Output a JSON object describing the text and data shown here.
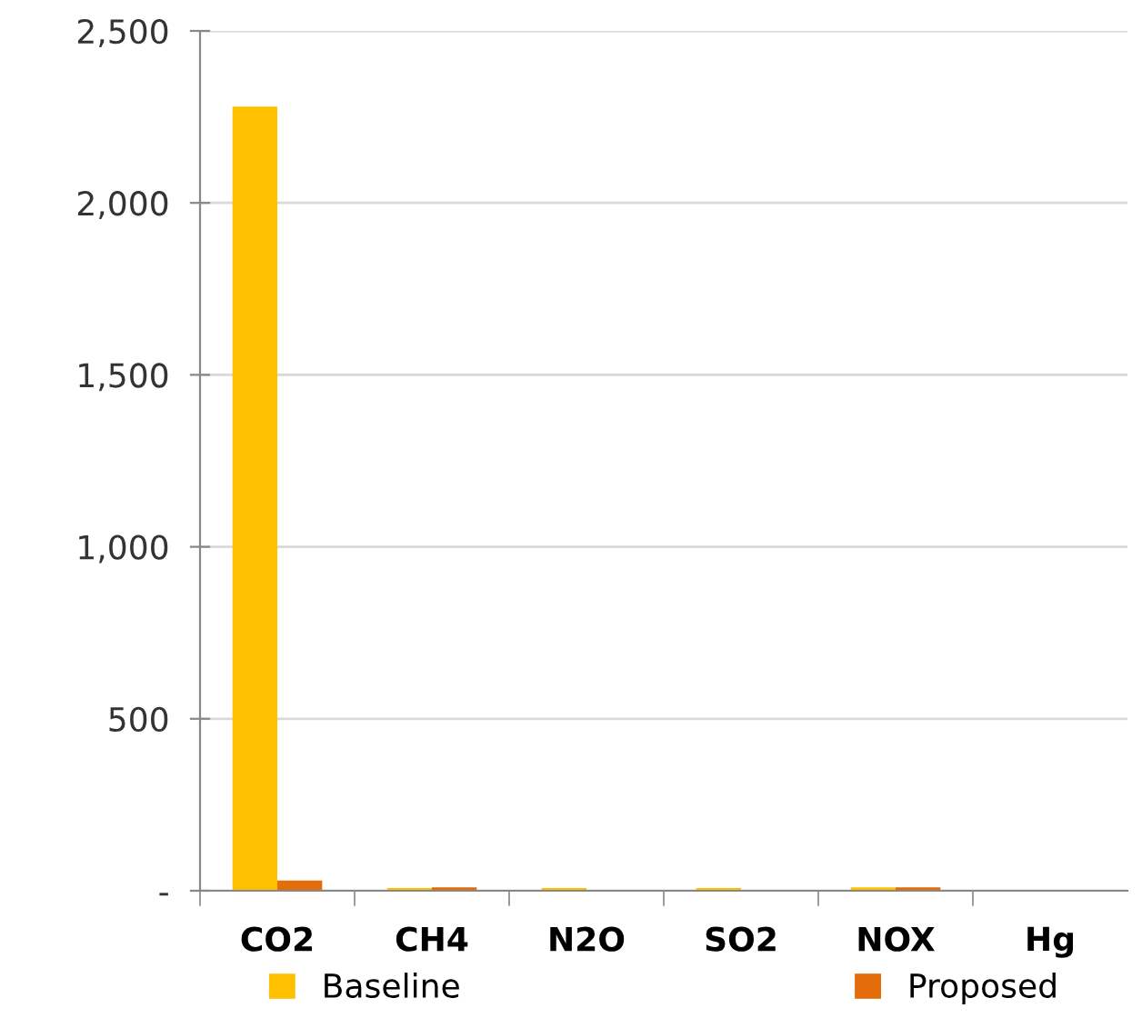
{
  "chart_data": {
    "type": "bar",
    "categories": [
      "CO2",
      "CH4",
      "N2O",
      "SO2",
      "NOX",
      "Hg"
    ],
    "series": [
      {
        "name": "Baseline",
        "color": "#ffc000",
        "values": [
          2280,
          8,
          8,
          8,
          10,
          0
        ]
      },
      {
        "name": "Proposed",
        "color": "#e46c0a",
        "values": [
          30,
          10,
          0,
          0,
          10,
          0
        ]
      }
    ],
    "ylim": [
      0,
      2500
    ],
    "yticks": [
      {
        "value": 0,
        "label": "-"
      },
      {
        "value": 500,
        "label": "500"
      },
      {
        "value": 1000,
        "label": "1,000"
      },
      {
        "value": 1500,
        "label": "1,500"
      },
      {
        "value": 2000,
        "label": "2,000"
      },
      {
        "value": 2500,
        "label": "2,500"
      }
    ],
    "grid": "y",
    "legend": "bottom"
  }
}
